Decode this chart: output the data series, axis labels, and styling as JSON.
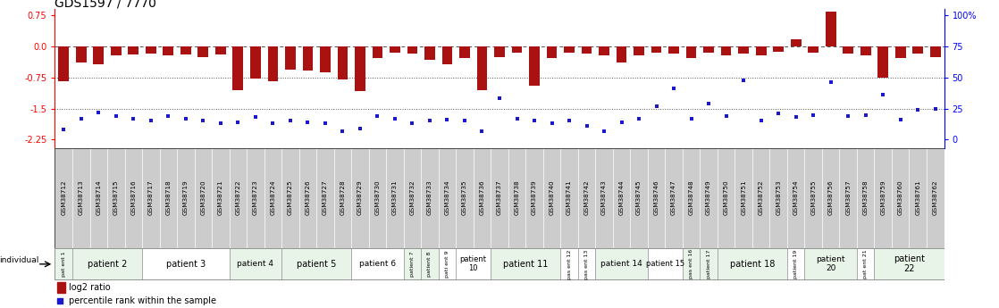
{
  "title": "GDS1597 / 7770",
  "samples": [
    "GSM38712",
    "GSM38713",
    "GSM38714",
    "GSM38715",
    "GSM38716",
    "GSM38717",
    "GSM38718",
    "GSM38719",
    "GSM38720",
    "GSM38721",
    "GSM38722",
    "GSM38723",
    "GSM38724",
    "GSM38725",
    "GSM38726",
    "GSM38727",
    "GSM38728",
    "GSM38729",
    "GSM38730",
    "GSM38731",
    "GSM38732",
    "GSM38733",
    "GSM38734",
    "GSM38735",
    "GSM38736",
    "GSM38737",
    "GSM38738",
    "GSM38739",
    "GSM38740",
    "GSM38741",
    "GSM38742",
    "GSM38743",
    "GSM38744",
    "GSM38745",
    "GSM38746",
    "GSM38747",
    "GSM38748",
    "GSM38749",
    "GSM38750",
    "GSM38751",
    "GSM38752",
    "GSM38753",
    "GSM38754",
    "GSM38755",
    "GSM38756",
    "GSM38757",
    "GSM38758",
    "GSM38759",
    "GSM38760",
    "GSM38761",
    "GSM38762"
  ],
  "log2_ratio": [
    -0.85,
    -0.38,
    -0.42,
    -0.22,
    -0.2,
    -0.18,
    -0.22,
    -0.2,
    -0.25,
    -0.2,
    -1.05,
    -0.78,
    -0.85,
    -0.55,
    -0.58,
    -0.62,
    -0.8,
    -1.08,
    -0.28,
    -0.15,
    -0.18,
    -0.32,
    -0.42,
    -0.28,
    -1.05,
    -0.25,
    -0.15,
    -0.95,
    -0.28,
    -0.15,
    -0.18,
    -0.22,
    -0.38,
    -0.22,
    -0.15,
    -0.18,
    -0.28,
    -0.15,
    -0.22,
    -0.18,
    -0.22,
    -0.12,
    0.18,
    -0.15,
    0.85,
    -0.18,
    -0.22,
    -0.75,
    -0.28,
    -0.18,
    -0.25
  ],
  "percentile_rank": [
    8,
    17,
    22,
    19,
    17,
    15,
    19,
    17,
    15,
    13,
    14,
    18,
    13,
    15,
    14,
    13,
    7,
    9,
    19,
    17,
    13,
    15,
    16,
    15,
    7,
    33,
    17,
    15,
    13,
    15,
    11,
    7,
    14,
    17,
    27,
    41,
    17,
    29,
    19,
    48,
    15,
    21,
    18,
    20,
    46,
    19,
    20,
    36,
    16,
    24,
    25
  ],
  "patients": [
    {
      "label": "pat\nent 1",
      "start": 0,
      "end": 0,
      "color": "#e8f4e8"
    },
    {
      "label": "patient 2",
      "start": 1,
      "end": 4,
      "color": "#e8f4e8"
    },
    {
      "label": "patient 3",
      "start": 5,
      "end": 9,
      "color": "#ffffff"
    },
    {
      "label": "patient 4",
      "start": 10,
      "end": 12,
      "color": "#e8f4e8"
    },
    {
      "label": "patient 5",
      "start": 13,
      "end": 16,
      "color": "#e8f4e8"
    },
    {
      "label": "patient 6",
      "start": 17,
      "end": 19,
      "color": "#ffffff"
    },
    {
      "label": "patient 7",
      "start": 20,
      "end": 20,
      "color": "#e8f4e8"
    },
    {
      "label": "patient 8",
      "start": 21,
      "end": 21,
      "color": "#e8f4e8"
    },
    {
      "label": "pati\nent 9",
      "start": 22,
      "end": 22,
      "color": "#ffffff"
    },
    {
      "label": "patient\n10",
      "start": 23,
      "end": 24,
      "color": "#ffffff"
    },
    {
      "label": "patient 11",
      "start": 25,
      "end": 28,
      "color": "#e8f4e8"
    },
    {
      "label": "pas\nent\n12",
      "start": 29,
      "end": 29,
      "color": "#ffffff"
    },
    {
      "label": "pas\nent\n13",
      "start": 30,
      "end": 30,
      "color": "#ffffff"
    },
    {
      "label": "patient 14",
      "start": 31,
      "end": 33,
      "color": "#e8f4e8"
    },
    {
      "label": "patient 15",
      "start": 34,
      "end": 35,
      "color": "#ffffff"
    },
    {
      "label": "pas\nent\n16",
      "start": 36,
      "end": 36,
      "color": "#e8f4e8"
    },
    {
      "label": "patient\n17",
      "start": 37,
      "end": 37,
      "color": "#e8f4e8"
    },
    {
      "label": "patient 18",
      "start": 38,
      "end": 41,
      "color": "#e8f4e8"
    },
    {
      "label": "patient\n19",
      "start": 42,
      "end": 42,
      "color": "#ffffff"
    },
    {
      "label": "patient\n20",
      "start": 43,
      "end": 45,
      "color": "#e8f4e8"
    },
    {
      "label": "pat\nent\n21",
      "start": 46,
      "end": 46,
      "color": "#ffffff"
    },
    {
      "label": "patient\n22",
      "start": 47,
      "end": 50,
      "color": "#e8f4e8"
    }
  ],
  "yticks_left": [
    0.75,
    0.0,
    -0.75,
    -1.5,
    -2.25
  ],
  "yticks_right": [
    0,
    25,
    50,
    75,
    100
  ],
  "hline_dashed": 0.0,
  "hlines_dotted": [
    -0.75,
    -1.5
  ],
  "bar_color": "#aa1111",
  "dot_color": "#1a1acc",
  "bar_width": 0.6,
  "title_fontsize": 10,
  "tick_fontsize": 7,
  "sample_fontsize": 5.2
}
